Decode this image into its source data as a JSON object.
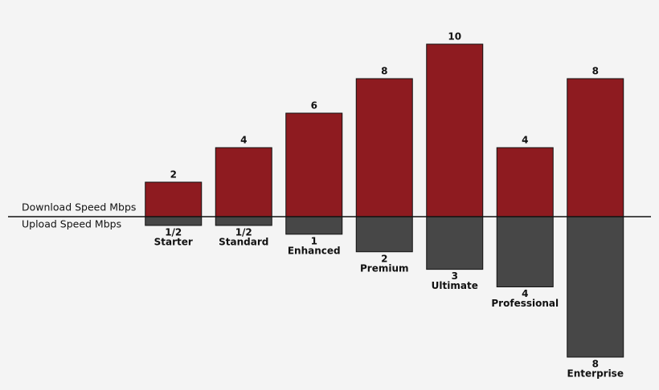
{
  "chart_data": {
    "type": "diverging-bar",
    "categories": [
      "Starter",
      "Standard",
      "Enhanced",
      "Premium",
      "Ultimate",
      "Professional",
      "Enterprise"
    ],
    "series": [
      {
        "name": "Download Speed Mbps",
        "color": "#8e1b20",
        "values": [
          2,
          4,
          6,
          8,
          10,
          4,
          8
        ]
      },
      {
        "name": "Upload Speed Mbps",
        "color": "#474747",
        "axis": "y2",
        "values": [
          0.5,
          0.5,
          1,
          2,
          3,
          4,
          8
        ],
        "value_labels": [
          "1/2",
          "1/2",
          "1",
          "2",
          "3",
          "4",
          "8"
        ]
      }
    ],
    "ylim": [
      0,
      10
    ],
    "y2lim": [
      0,
      8
    ]
  }
}
